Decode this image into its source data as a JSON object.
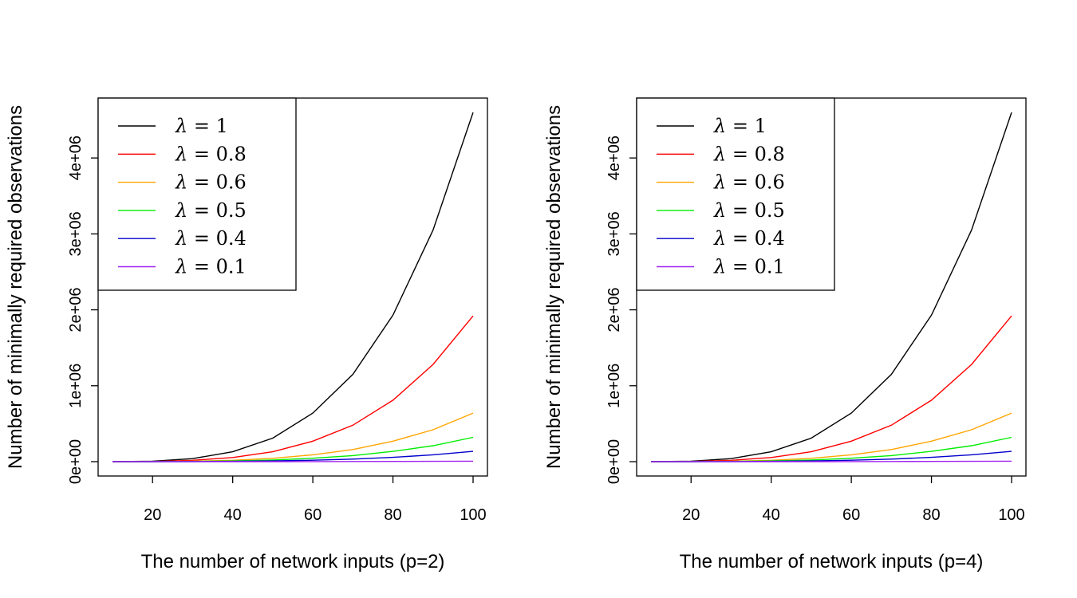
{
  "chart_data": [
    {
      "type": "line",
      "xlabel": "The number of network inputs (p=2)",
      "ylabel": "Number of minimally required observations",
      "x": [
        10,
        20,
        30,
        40,
        50,
        60,
        70,
        80,
        90,
        100
      ],
      "xlim": [
        10,
        100
      ],
      "ylim": [
        0,
        4600000
      ],
      "xticks": [
        "20",
        "40",
        "60",
        "80",
        "100"
      ],
      "xtick_values": [
        20,
        40,
        60,
        80,
        100
      ],
      "yticks": [
        "0e+00",
        "1e+06",
        "2e+06",
        "3e+06",
        "4e+06"
      ],
      "ytick_values": [
        0,
        1000000,
        2000000,
        3000000,
        4000000
      ],
      "legend_position": "top-left",
      "series": [
        {
          "name": "1",
          "color": "#000000",
          "values": [
            0,
            5000,
            40000,
            130000,
            310000,
            640000,
            1150000,
            1930000,
            3050000,
            4600000
          ]
        },
        {
          "name": "0.8",
          "color": "#ff0000",
          "values": [
            0,
            2500,
            18000,
            55000,
            130000,
            270000,
            480000,
            810000,
            1280000,
            1920000
          ]
        },
        {
          "name": "0.6",
          "color": "#ffa500",
          "values": [
            0,
            1000,
            6000,
            18000,
            44000,
            90000,
            160000,
            270000,
            420000,
            640000
          ]
        },
        {
          "name": "0.5",
          "color": "#00ee00",
          "values": [
            0,
            500,
            3000,
            9000,
            22000,
            45000,
            80000,
            135000,
            210000,
            320000
          ]
        },
        {
          "name": "0.4",
          "color": "#0000cd",
          "values": [
            0,
            200,
            1200,
            4000,
            9000,
            19000,
            34000,
            57000,
            90000,
            135000
          ]
        },
        {
          "name": "0.1",
          "color": "#a020f0",
          "values": [
            0,
            10,
            60,
            200,
            450,
            900,
            1600,
            2700,
            4300,
            6500
          ]
        }
      ]
    },
    {
      "type": "line",
      "xlabel": "The number of network inputs (p=4)",
      "ylabel": "Number of minimally required observations",
      "x": [
        10,
        20,
        30,
        40,
        50,
        60,
        70,
        80,
        90,
        100
      ],
      "xlim": [
        10,
        100
      ],
      "ylim": [
        0,
        4600000
      ],
      "xticks": [
        "20",
        "40",
        "60",
        "80",
        "100"
      ],
      "xtick_values": [
        20,
        40,
        60,
        80,
        100
      ],
      "yticks": [
        "0e+00",
        "1e+06",
        "2e+06",
        "3e+06",
        "4e+06"
      ],
      "ytick_values": [
        0,
        1000000,
        2000000,
        3000000,
        4000000
      ],
      "legend_position": "top-left",
      "series": [
        {
          "name": "1",
          "color": "#000000",
          "values": [
            0,
            5000,
            40000,
            130000,
            310000,
            640000,
            1150000,
            1930000,
            3050000,
            4600000
          ]
        },
        {
          "name": "0.8",
          "color": "#ff0000",
          "values": [
            0,
            2500,
            18000,
            55000,
            130000,
            270000,
            480000,
            810000,
            1280000,
            1920000
          ]
        },
        {
          "name": "0.6",
          "color": "#ffa500",
          "values": [
            0,
            1000,
            6000,
            18000,
            44000,
            90000,
            160000,
            270000,
            420000,
            640000
          ]
        },
        {
          "name": "0.5",
          "color": "#00ee00",
          "values": [
            0,
            500,
            3000,
            9000,
            22000,
            45000,
            80000,
            135000,
            210000,
            320000
          ]
        },
        {
          "name": "0.4",
          "color": "#0000cd",
          "values": [
            0,
            200,
            1200,
            4000,
            9000,
            19000,
            34000,
            57000,
            90000,
            135000
          ]
        },
        {
          "name": "0.1",
          "color": "#a020f0",
          "values": [
            0,
            10,
            60,
            200,
            450,
            900,
            1600,
            2700,
            4300,
            6500
          ]
        }
      ],
      "legend_symbol": "λ"
    }
  ],
  "legend_symbol": "λ"
}
